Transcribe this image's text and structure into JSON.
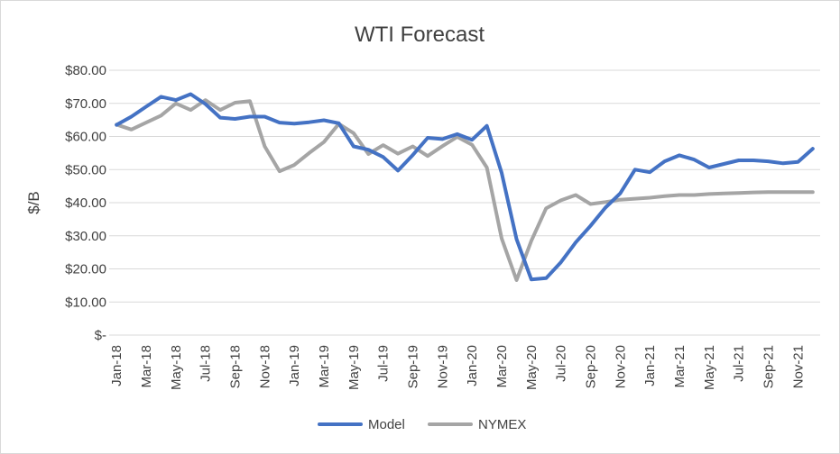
{
  "chart_data": {
    "type": "line",
    "title": "WTI Forecast",
    "xlabel": "",
    "ylabel": "$/B",
    "ylim": [
      0,
      80
    ],
    "y_ticks": [
      "$-",
      "$10.00",
      "$20.00",
      "$30.00",
      "$40.00",
      "$50.00",
      "$60.00",
      "$70.00",
      "$80.00"
    ],
    "x": [
      "Jan-18",
      "Feb-18",
      "Mar-18",
      "Apr-18",
      "May-18",
      "Jun-18",
      "Jul-18",
      "Aug-18",
      "Sep-18",
      "Oct-18",
      "Nov-18",
      "Dec-18",
      "Jan-19",
      "Feb-19",
      "Mar-19",
      "Apr-19",
      "May-19",
      "Jun-19",
      "Jul-19",
      "Aug-19",
      "Sep-19",
      "Oct-19",
      "Nov-19",
      "Dec-19",
      "Jan-20",
      "Feb-20",
      "Mar-20",
      "Apr-20",
      "May-20",
      "Jun-20",
      "Jul-20",
      "Aug-20",
      "Sep-20",
      "Oct-20",
      "Nov-20",
      "Dec-20",
      "Jan-21",
      "Feb-21",
      "Mar-21",
      "Apr-21",
      "May-21",
      "Jun-21",
      "Jul-21",
      "Aug-21",
      "Sep-21",
      "Oct-21",
      "Nov-21",
      "Dec-21"
    ],
    "x_tick_labels": [
      "Jan-18",
      "Mar-18",
      "May-18",
      "Jul-18",
      "Sep-18",
      "Nov-18",
      "Jan-19",
      "Mar-19",
      "May-19",
      "Jul-19",
      "Sep-19",
      "Nov-19",
      "Jan-20",
      "Mar-20",
      "May-20",
      "Jul-20",
      "Sep-20",
      "Nov-20",
      "Jan-21",
      "Mar-21",
      "May-21",
      "Jul-21",
      "Sep-21",
      "Nov-21"
    ],
    "series": [
      {
        "name": "Model",
        "color": "#4472c4",
        "values": [
          63.5,
          66.0,
          69.0,
          72.0,
          71.0,
          72.8,
          69.8,
          65.7,
          65.3,
          66.0,
          66.0,
          64.2,
          63.9,
          64.3,
          64.9,
          64.0,
          57.0,
          56.0,
          53.8,
          49.7,
          54.4,
          59.6,
          59.2,
          60.7,
          59.0,
          63.2,
          49.0,
          29.0,
          16.8,
          17.2,
          22.0,
          28.0,
          33.0,
          38.5,
          42.8,
          50.0,
          49.2,
          52.5,
          54.3,
          53.0,
          50.6,
          51.7,
          52.8,
          52.8,
          52.5,
          51.9,
          52.3,
          56.3
        ]
      },
      {
        "name": "NYMEX",
        "color": "#a5a5a5",
        "values": [
          63.6,
          62.1,
          64.2,
          66.3,
          70.0,
          68.0,
          71.0,
          68.0,
          70.2,
          70.7,
          57.0,
          49.5,
          51.4,
          55.0,
          58.3,
          63.8,
          61.0,
          54.7,
          57.4,
          54.8,
          57.0,
          54.1,
          57.1,
          59.9,
          57.5,
          50.6,
          29.2,
          16.6,
          28.5,
          38.3,
          40.7,
          42.3,
          39.6,
          40.2,
          40.9,
          41.2,
          41.5,
          42.0,
          42.3,
          42.3,
          42.6,
          42.8,
          42.9,
          43.1,
          43.2,
          43.2,
          43.2,
          43.2
        ]
      }
    ],
    "grid": true,
    "legend_position": "bottom"
  }
}
